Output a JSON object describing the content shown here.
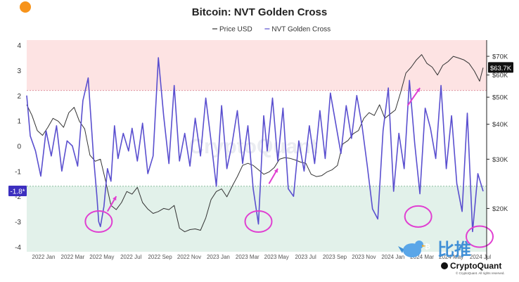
{
  "chart_data": {
    "type": "line",
    "title": "Bitcoin: NVT Golden Cross",
    "legend": [
      {
        "name": "Price USD",
        "color": "#333333"
      },
      {
        "name": "NVT Golden Cross",
        "color": "#5a4fcf"
      }
    ],
    "x_ticks": [
      "2022 Jan",
      "2022 Mar",
      "2022 May",
      "2022 Jul",
      "2022 Sep",
      "2022 Nov",
      "2023 Jan",
      "2023 Mar",
      "2023 May",
      "2023 Jul",
      "2023 Sep",
      "2023 Nov",
      "2024 Jan",
      "2024 Mar",
      "2024 May",
      "2024 Jul"
    ],
    "x_range": [
      2022.0,
      2024.62
    ],
    "left_axis": {
      "ylim": [
        -4.2,
        4.2
      ],
      "ticks": [
        4,
        3,
        2,
        1,
        0,
        -1,
        -2,
        -3,
        -4
      ]
    },
    "right_axis": {
      "scale": "log",
      "ylim": [
        14000,
        80000
      ],
      "ticks": [
        {
          "value": 70000,
          "label": "$70K"
        },
        {
          "value": 60000,
          "label": "$60K"
        },
        {
          "value": 50000,
          "label": "$50K"
        },
        {
          "value": 40000,
          "label": "$40K"
        },
        {
          "value": 30000,
          "label": "$30K"
        },
        {
          "value": 20000,
          "label": "$20K"
        }
      ]
    },
    "zones": {
      "upper_threshold": 2.2,
      "lower_threshold": -1.6,
      "upper_color": "#fde3e3",
      "lower_color": "#e2f1ea"
    },
    "current_nvt_label": "-1.8*",
    "current_nvt_value": -1.8,
    "current_price_label": "$63.7K",
    "current_price_value": 63700,
    "series": [
      {
        "name": "NVT Golden Cross",
        "axis": "left",
        "x": [
          2022.0,
          2022.02,
          2022.05,
          2022.08,
          2022.11,
          2022.14,
          2022.17,
          2022.2,
          2022.23,
          2022.26,
          2022.29,
          2022.32,
          2022.35,
          2022.38,
          2022.4,
          2022.41,
          2022.42,
          2022.44,
          2022.46,
          2022.48,
          2022.5,
          2022.52,
          2022.55,
          2022.58,
          2022.6,
          2022.63,
          2022.66,
          2022.69,
          2022.72,
          2022.75,
          2022.78,
          2022.81,
          2022.84,
          2022.87,
          2022.9,
          2022.93,
          2022.96,
          2022.99,
          2023.02,
          2023.05,
          2023.08,
          2023.11,
          2023.14,
          2023.17,
          2023.2,
          2023.23,
          2023.26,
          2023.29,
          2023.32,
          2023.35,
          2023.37,
          2023.4,
          2023.43,
          2023.46,
          2023.49,
          2023.52,
          2023.55,
          2023.58,
          2023.61,
          2023.64,
          2023.67,
          2023.7,
          2023.73,
          2023.76,
          2023.79,
          2023.82,
          2023.85,
          2023.88,
          2023.91,
          2023.94,
          2023.97,
          2024.0,
          2024.03,
          2024.06,
          2024.09,
          2024.12,
          2024.15,
          2024.18,
          2024.21,
          2024.24,
          2024.27,
          2024.3,
          2024.33,
          2024.36,
          2024.39,
          2024.42,
          2024.45,
          2024.48,
          2024.51,
          2024.54,
          2024.57,
          2024.6
        ],
        "values": [
          2.0,
          0.4,
          -0.2,
          -1.2,
          0.6,
          -0.4,
          0.8,
          -1.0,
          0.2,
          0.0,
          -0.8,
          1.8,
          2.7,
          -0.4,
          -2.0,
          -3.0,
          -3.2,
          -2.4,
          -0.9,
          -1.4,
          0.8,
          -0.5,
          0.5,
          -0.2,
          0.7,
          -0.6,
          0.9,
          -1.1,
          -0.4,
          3.5,
          1.2,
          -0.7,
          2.4,
          -0.6,
          0.5,
          -0.8,
          1.1,
          -0.4,
          1.9,
          0.2,
          -1.6,
          1.6,
          -0.9,
          0.1,
          1.4,
          -0.7,
          0.8,
          -1.7,
          -3.1,
          1.2,
          -0.2,
          1.9,
          -0.6,
          1.5,
          -1.7,
          -2.0,
          0.2,
          -1.0,
          0.8,
          -0.7,
          1.4,
          -0.5,
          2.1,
          0.9,
          -0.3,
          1.6,
          0.3,
          2.0,
          0.8,
          -0.8,
          -2.5,
          -2.9,
          0.6,
          2.3,
          -1.8,
          0.5,
          -0.9,
          2.6,
          0.1,
          -1.9,
          1.5,
          0.7,
          -0.5,
          2.4,
          -0.9,
          1.2,
          -1.5,
          -2.6,
          1.3,
          -3.4,
          -1.1,
          -1.8
        ]
      },
      {
        "name": "Price USD",
        "axis": "right",
        "x": [
          2022.0,
          2022.03,
          2022.06,
          2022.09,
          2022.12,
          2022.15,
          2022.18,
          2022.21,
          2022.24,
          2022.27,
          2022.3,
          2022.33,
          2022.36,
          2022.39,
          2022.42,
          2022.45,
          2022.48,
          2022.51,
          2022.54,
          2022.57,
          2022.6,
          2022.63,
          2022.66,
          2022.69,
          2022.72,
          2022.75,
          2022.78,
          2022.81,
          2022.84,
          2022.87,
          2022.9,
          2022.93,
          2022.96,
          2022.99,
          2023.02,
          2023.05,
          2023.08,
          2023.11,
          2023.14,
          2023.17,
          2023.2,
          2023.23,
          2023.26,
          2023.29,
          2023.32,
          2023.35,
          2023.38,
          2023.41,
          2023.44,
          2023.47,
          2023.5,
          2023.53,
          2023.56,
          2023.59,
          2023.62,
          2023.65,
          2023.68,
          2023.71,
          2023.74,
          2023.77,
          2023.8,
          2023.83,
          2023.86,
          2023.89,
          2023.92,
          2023.95,
          2023.98,
          2024.01,
          2024.04,
          2024.07,
          2024.1,
          2024.13,
          2024.16,
          2024.19,
          2024.22,
          2024.25,
          2024.28,
          2024.31,
          2024.34,
          2024.37,
          2024.4,
          2024.43,
          2024.46,
          2024.49,
          2024.52,
          2024.55,
          2024.58,
          2024.6
        ],
        "values": [
          47000,
          43000,
          38000,
          36500,
          39000,
          42000,
          41000,
          39000,
          44000,
          46000,
          41000,
          38500,
          31000,
          29500,
          30000,
          25000,
          20500,
          19800,
          21000,
          23000,
          22500,
          23800,
          21000,
          19900,
          19200,
          19500,
          20000,
          19800,
          20500,
          17000,
          16500,
          16800,
          16900,
          16700,
          18500,
          21500,
          23000,
          23500,
          22000,
          24000,
          26000,
          28500,
          29000,
          28500,
          27500,
          26500,
          27000,
          28000,
          30000,
          30400,
          30200,
          29800,
          29300,
          29000,
          26500,
          26000,
          26200,
          27000,
          27500,
          28500,
          34000,
          35000,
          37000,
          38000,
          42000,
          44000,
          43000,
          47000,
          42000,
          43500,
          45000,
          52000,
          61000,
          64000,
          68000,
          71000,
          66000,
          64000,
          60000,
          65000,
          67000,
          70000,
          69000,
          68000,
          66000,
          62000,
          57000,
          63700
        ]
      }
    ],
    "annotations": [
      {
        "type": "circle",
        "x": 2022.41,
        "value": -3.0,
        "color": "#e03fd1"
      },
      {
        "type": "circle",
        "x": 2023.32,
        "value": -3.0,
        "color": "#e03fd1"
      },
      {
        "type": "circle",
        "x": 2024.23,
        "value": -2.8,
        "color": "#e03fd1"
      },
      {
        "type": "circle",
        "x": 2024.58,
        "value": -3.6,
        "color": "#e03fd1"
      },
      {
        "type": "arrow",
        "x1": 2022.46,
        "y1": -2.6,
        "x2": 2022.51,
        "y2": -2.0,
        "color": "#e03fd1"
      },
      {
        "type": "arrow",
        "x1": 2023.38,
        "y1": -1.5,
        "x2": 2023.43,
        "y2": -0.9,
        "color": "#e03fd1"
      },
      {
        "type": "arrow",
        "x1": 2024.17,
        "y1": 1.6,
        "x2": 2024.24,
        "y2": 2.3,
        "color": "#e03fd1"
      }
    ]
  },
  "watermark": "CryptoQuant",
  "brand": {
    "name": "CryptoQuant",
    "cjk_text": "比推",
    "rights_text": "© CryptoQuant. All rights reserved."
  }
}
